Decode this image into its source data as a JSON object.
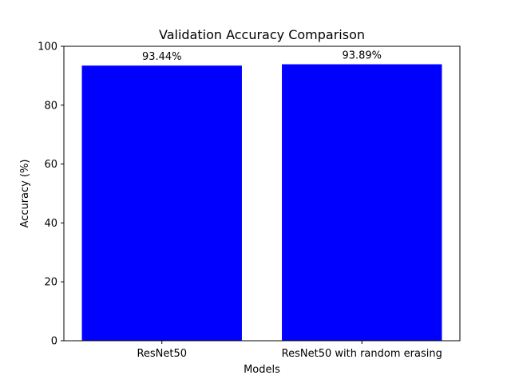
{
  "chart_data": {
    "type": "bar",
    "title": "Validation Accuracy Comparison",
    "xlabel": "Models",
    "ylabel": "Accuracy (%)",
    "categories": [
      "ResNet50",
      "ResNet50 with random erasing"
    ],
    "values": [
      93.44,
      93.89
    ],
    "data_labels": [
      "93.44%",
      "93.89%"
    ],
    "ylim": [
      0,
      100
    ],
    "yticks": [
      0,
      20,
      40,
      60,
      80,
      100
    ],
    "bar_color": "#0000ff",
    "grid": false,
    "legend": "none"
  }
}
